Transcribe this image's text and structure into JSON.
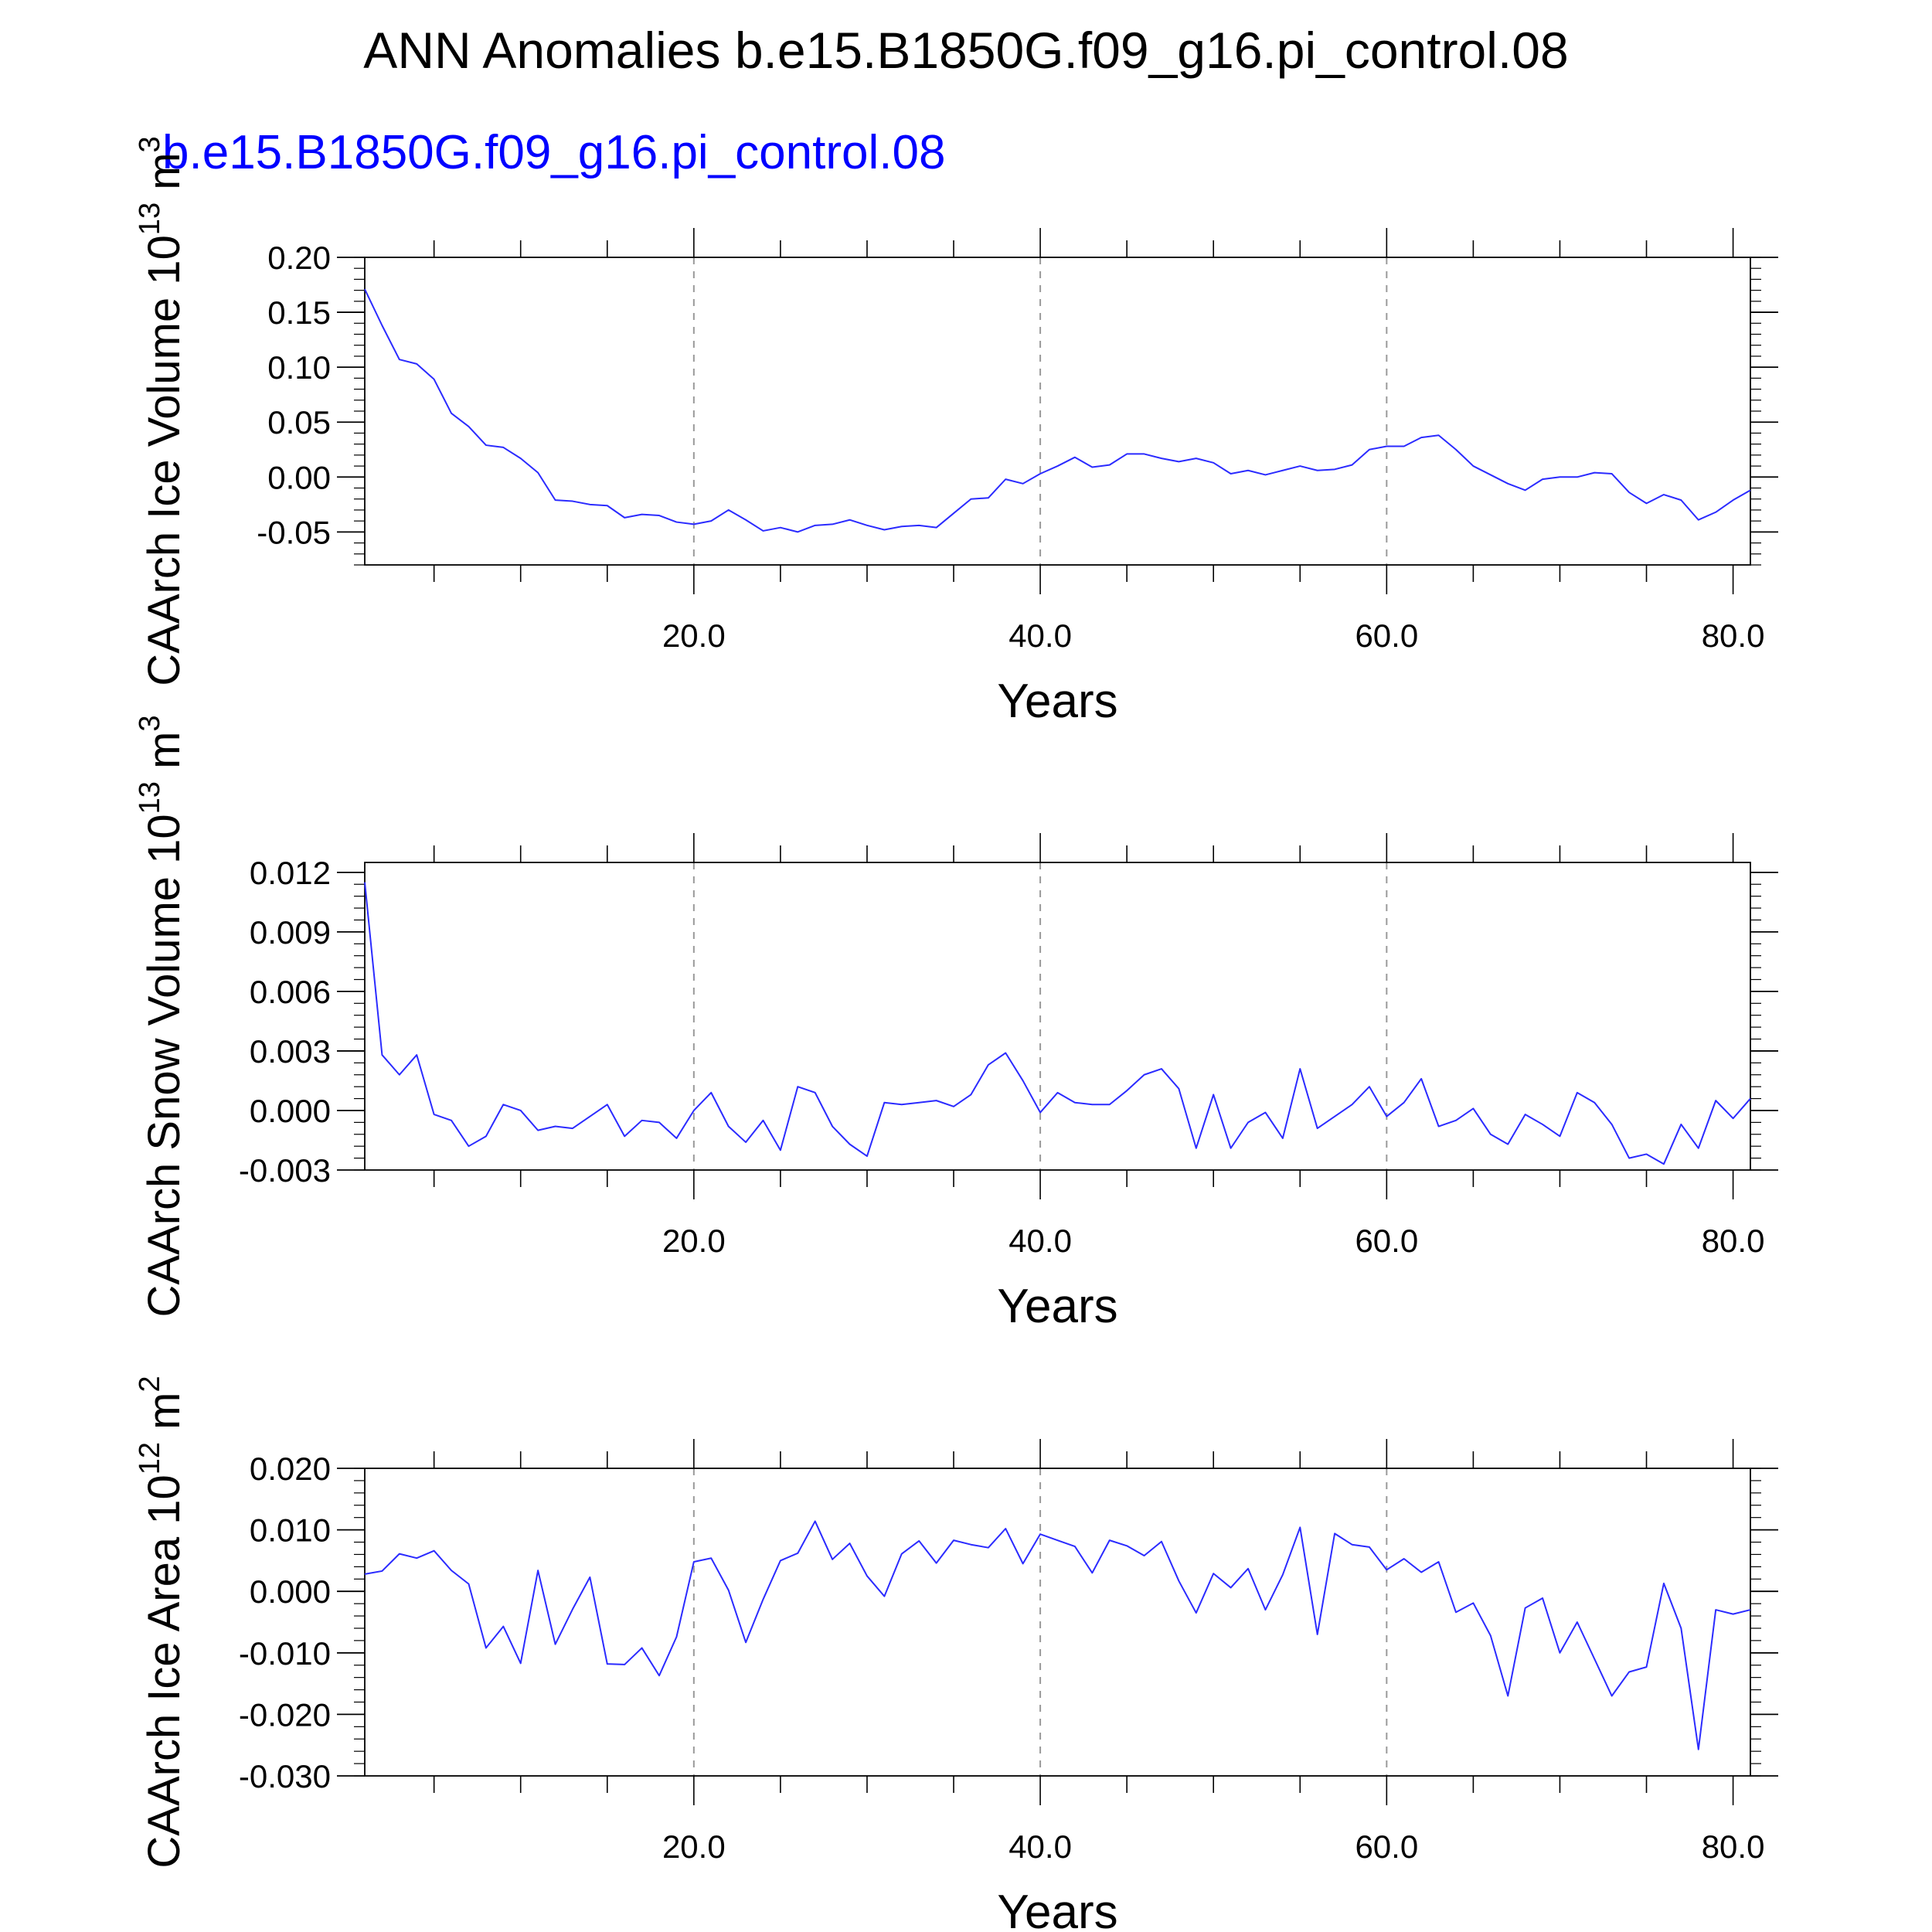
{
  "main_title": "ANN Anomalies b.e15.B1850G.f09_g16.pi_control.08",
  "series_label": "b.e15.B1850G.f09_g16.pi_control.08",
  "colors": {
    "line": "#2b2bff",
    "series_label": "#0000ff",
    "grid": "#9a9a9a",
    "axis": "#000000"
  },
  "chart_data": [
    {
      "type": "line",
      "ylabel": "CAArch Ice Volume 10",
      "ylabel_exp": "13",
      "ylabel_unit": "m",
      "ylabel_unit_exp": "3",
      "xlabel": "Years",
      "xlim": [
        1,
        81
      ],
      "ylim": [
        -0.08,
        0.2
      ],
      "x_ticks": [
        20,
        40,
        60,
        80
      ],
      "x_tick_labels": [
        "20.0",
        "40.0",
        "60.0",
        "80.0"
      ],
      "y_ticks": [
        0.2,
        0.15,
        0.1,
        0.05,
        0.0,
        -0.05
      ],
      "y_tick_labels": [
        "0.20",
        "0.15",
        "0.10",
        "0.05",
        "0.00",
        "-0.05"
      ],
      "y_minor_step": 0.01,
      "grid_x": [
        20,
        40,
        60
      ],
      "x": [
        1,
        2,
        3,
        4,
        5,
        6,
        7,
        8,
        9,
        10,
        11,
        12,
        13,
        14,
        15,
        16,
        17,
        18,
        19,
        20,
        21,
        22,
        23,
        24,
        25,
        26,
        27,
        28,
        29,
        30,
        31,
        32,
        33,
        34,
        35,
        36,
        37,
        38,
        39,
        40,
        41,
        42,
        43,
        44,
        45,
        46,
        47,
        48,
        49,
        50,
        51,
        52,
        53,
        54,
        55,
        56,
        57,
        58,
        59,
        60,
        61,
        62,
        63,
        64,
        65,
        66,
        67,
        68,
        69,
        70,
        71,
        72,
        73,
        74,
        75,
        76,
        77,
        78,
        79,
        80,
        81
      ],
      "y": [
        0.171,
        0.138,
        0.107,
        0.103,
        0.089,
        0.058,
        0.046,
        0.029,
        0.027,
        0.017,
        0.004,
        -0.021,
        -0.022,
        -0.025,
        -0.026,
        -0.037,
        -0.034,
        -0.035,
        -0.041,
        -0.043,
        -0.04,
        -0.03,
        -0.039,
        -0.049,
        -0.046,
        -0.05,
        -0.044,
        -0.043,
        -0.039,
        -0.044,
        -0.048,
        -0.045,
        -0.044,
        -0.046,
        -0.033,
        -0.02,
        -0.019,
        -0.002,
        -0.006,
        0.003,
        0.01,
        0.018,
        0.009,
        0.011,
        0.021,
        0.021,
        0.017,
        0.014,
        0.017,
        0.013,
        0.003,
        0.006,
        0.002,
        0.006,
        0.01,
        0.006,
        0.007,
        0.011,
        0.025,
        0.028,
        0.028,
        0.036,
        0.038,
        0.025,
        0.01,
        0.002,
        -0.006,
        -0.012,
        -0.002,
        0.0,
        0.0,
        0.004,
        0.003,
        -0.014,
        -0.024,
        -0.016,
        -0.021,
        -0.039,
        -0.032,
        -0.021,
        -0.012
      ]
    },
    {
      "type": "line",
      "ylabel": "CAArch Snow Volume 10",
      "ylabel_exp": "13",
      "ylabel_unit": "m",
      "ylabel_unit_exp": "3",
      "xlabel": "Years",
      "xlim": [
        1,
        81
      ],
      "ylim": [
        -0.003,
        0.0125
      ],
      "x_ticks": [
        20,
        40,
        60,
        80
      ],
      "x_tick_labels": [
        "20.0",
        "40.0",
        "60.0",
        "80.0"
      ],
      "y_ticks": [
        0.012,
        0.009,
        0.006,
        0.003,
        0.0,
        -0.003
      ],
      "y_tick_labels": [
        "0.012",
        "0.009",
        "0.006",
        "0.003",
        "0.000",
        "-0.003"
      ],
      "y_minor_step": 0.0006,
      "grid_x": [
        20,
        40,
        60
      ],
      "x": [
        1,
        2,
        3,
        4,
        5,
        6,
        7,
        8,
        9,
        10,
        11,
        12,
        13,
        14,
        15,
        16,
        17,
        18,
        19,
        20,
        21,
        22,
        23,
        24,
        25,
        26,
        27,
        28,
        29,
        30,
        31,
        32,
        33,
        34,
        35,
        36,
        37,
        38,
        39,
        40,
        41,
        42,
        43,
        44,
        45,
        46,
        47,
        48,
        49,
        50,
        51,
        52,
        53,
        54,
        55,
        56,
        57,
        58,
        59,
        60,
        61,
        62,
        63,
        64,
        65,
        66,
        67,
        68,
        69,
        70,
        71,
        72,
        73,
        74,
        75,
        76,
        77,
        78,
        79,
        80,
        81
      ],
      "y": [
        0.0115,
        0.0028,
        0.0018,
        0.0028,
        -0.0002,
        -0.0005,
        -0.0018,
        -0.0013,
        0.0003,
        0.0,
        -0.001,
        -0.0008,
        -0.0009,
        -0.0003,
        0.0003,
        -0.0013,
        -0.0005,
        -0.0006,
        -0.0014,
        0.0,
        0.0009,
        -0.0008,
        -0.0016,
        -0.0005,
        -0.002,
        0.0012,
        0.0009,
        -0.0008,
        -0.0017,
        -0.0023,
        0.0004,
        0.0003,
        0.0004,
        0.0005,
        0.0002,
        0.0008,
        0.0023,
        0.0029,
        0.0015,
        -0.0001,
        0.0009,
        0.0004,
        0.0003,
        0.0003,
        0.001,
        0.0018,
        0.0021,
        0.0011,
        -0.0019,
        0.0008,
        -0.0019,
        -0.0006,
        -0.0001,
        -0.0014,
        0.0021,
        -0.0009,
        -0.0003,
        0.0003,
        0.0012,
        -0.0003,
        0.0004,
        0.0016,
        -0.0008,
        -0.0005,
        0.0001,
        -0.0012,
        -0.0017,
        -0.0002,
        -0.0007,
        -0.0013,
        0.0009,
        0.0004,
        -0.0007,
        -0.0024,
        -0.0022,
        -0.0027,
        -0.0007,
        -0.0019,
        0.0005,
        -0.0004,
        0.0006
      ]
    },
    {
      "type": "line",
      "ylabel": "CAArch Ice Area 10",
      "ylabel_exp": "12",
      "ylabel_unit": "m",
      "ylabel_unit_exp": "2",
      "xlabel": "Years",
      "xlim": [
        1,
        81
      ],
      "ylim": [
        -0.03,
        0.02
      ],
      "x_ticks": [
        20,
        40,
        60,
        80
      ],
      "x_tick_labels": [
        "20.0",
        "40.0",
        "60.0",
        "80.0"
      ],
      "y_ticks": [
        0.02,
        0.01,
        0.0,
        -0.01,
        -0.02,
        -0.03
      ],
      "y_tick_labels": [
        "0.020",
        "0.010",
        "0.000",
        "-0.010",
        "-0.020",
        "-0.030"
      ],
      "y_minor_step": 0.002,
      "grid_x": [
        20,
        40,
        60
      ],
      "x": [
        1,
        2,
        3,
        4,
        5,
        6,
        7,
        8,
        9,
        10,
        11,
        12,
        13,
        14,
        15,
        16,
        17,
        18,
        19,
        20,
        21,
        22,
        23,
        24,
        25,
        26,
        27,
        28,
        29,
        30,
        31,
        32,
        33,
        34,
        35,
        36,
        37,
        38,
        39,
        40,
        41,
        42,
        43,
        44,
        45,
        46,
        47,
        48,
        49,
        50,
        51,
        52,
        53,
        54,
        55,
        56,
        57,
        58,
        59,
        60,
        61,
        62,
        63,
        64,
        65,
        66,
        67,
        68,
        69,
        70,
        71,
        72,
        73,
        74,
        75,
        76,
        77,
        78,
        79,
        80,
        81
      ],
      "y": [
        0.0028,
        0.0033,
        0.0061,
        0.0054,
        0.0066,
        0.0034,
        0.0012,
        -0.0092,
        -0.0057,
        -0.0117,
        0.0034,
        -0.0086,
        -0.0029,
        0.0023,
        -0.0118,
        -0.0119,
        -0.0092,
        -0.0137,
        -0.0074,
        0.0048,
        0.0054,
        0.0002,
        -0.0083,
        -0.0013,
        0.005,
        0.0062,
        0.0114,
        0.0052,
        0.0078,
        0.0025,
        -0.0008,
        0.0061,
        0.0082,
        0.0046,
        0.0083,
        0.0076,
        0.0071,
        0.0102,
        0.0045,
        0.0093,
        0.0083,
        0.0073,
        0.003,
        0.0083,
        0.0074,
        0.0058,
        0.0081,
        0.0017,
        -0.0035,
        0.0029,
        0.0006,
        0.0037,
        -0.003,
        0.0027,
        0.0104,
        -0.007,
        0.0094,
        0.0076,
        0.0072,
        0.0035,
        0.0053,
        0.0031,
        0.0048,
        -0.0034,
        -0.0019,
        -0.0072,
        -0.017,
        -0.0027,
        -0.0011,
        -0.01,
        -0.005,
        -0.011,
        -0.017,
        -0.0131,
        -0.0123,
        0.0013,
        -0.006,
        -0.0257,
        -0.003,
        -0.0037,
        -0.003
      ]
    }
  ]
}
